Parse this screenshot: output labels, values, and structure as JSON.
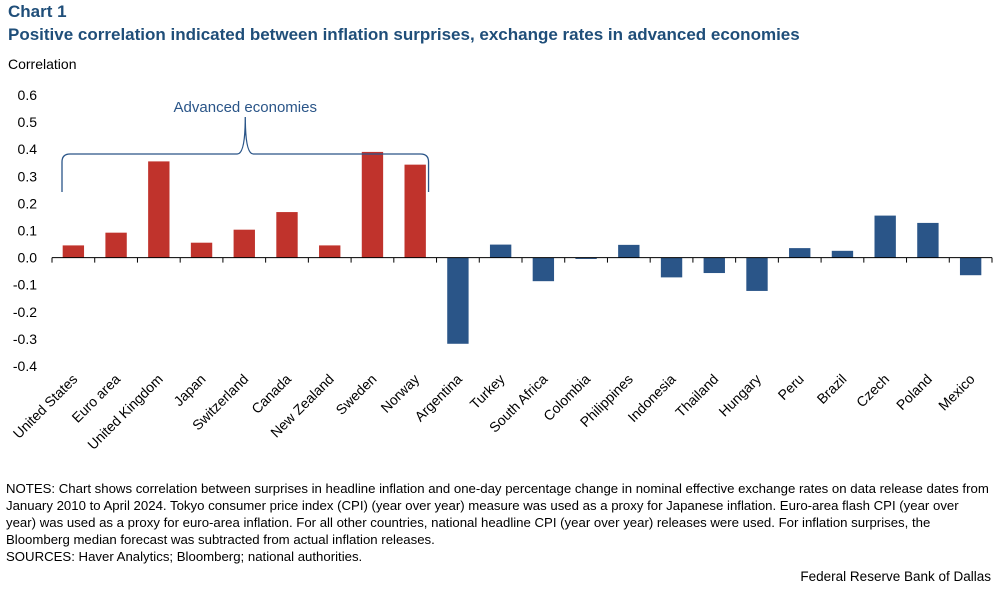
{
  "header": {
    "chart_number": "Chart 1",
    "title": "Positive correlation indicated between inflation surprises, exchange rates in advanced economies"
  },
  "colors": {
    "advanced": "#c0332c",
    "emerging": "#2a5588",
    "bracket": "#2a5588",
    "annotation": "#2a5588"
  },
  "chart_data": {
    "type": "bar",
    "title": "Positive correlation indicated between inflation surprises, exchange rates in advanced economies",
    "ylabel": "Correlation",
    "xlabel": "",
    "ylim": [
      -0.4,
      0.6
    ],
    "yticks": [
      "0.6",
      "0.5",
      "0.4",
      "0.3",
      "0.2",
      "0.1",
      "0.0",
      "-0.1",
      "-0.2",
      "-0.3",
      "-0.4"
    ],
    "ytick_values": [
      0.6,
      0.5,
      0.4,
      0.3,
      0.2,
      0.1,
      0.0,
      -0.1,
      -0.2,
      -0.3,
      -0.4
    ],
    "grid": false,
    "categories": [
      "United States",
      "Euro area",
      "United Kingdom",
      "Japan",
      "Switzerland",
      "Canada",
      "New Zealand",
      "Sweden",
      "Norway",
      "Argentina",
      "Turkey",
      "South Africa",
      "Colombia",
      "Philippines",
      "Indonesia",
      "Thailand",
      "Hungary",
      "Peru",
      "Brazil",
      "Czech",
      "Poland",
      "Mexico"
    ],
    "values": [
      0.045,
      0.092,
      0.355,
      0.055,
      0.103,
      0.168,
      0.045,
      0.39,
      0.343,
      -0.318,
      0.048,
      -0.087,
      -0.005,
      0.047,
      -0.073,
      -0.057,
      -0.123,
      0.035,
      0.025,
      0.155,
      0.128,
      -0.065
    ],
    "groups": [
      {
        "name": "Advanced economies",
        "from": 0,
        "to": 8
      },
      {
        "name": "",
        "from": 9,
        "to": 21
      }
    ],
    "annotation": "Advanced economies"
  },
  "notes": {
    "text": "NOTES: Chart shows correlation between surprises in headline inflation and one-day percentage change in nominal effective exchange rates on data release dates from January 2010 to April 2024. Tokyo consumer price index (CPI) (year over year) measure was used as a proxy for Japanese inflation. Euro-area flash CPI (year over year) was used as a proxy for euro-area inflation. For all other countries, national headline CPI (year over year) releases were used. For inflation surprises, the Bloomberg median forecast was subtracted from actual inflation releases.",
    "sources": "SOURCES: Haver Analytics; Bloomberg; national authorities."
  },
  "footer": {
    "credit": "Federal Reserve Bank of Dallas"
  }
}
